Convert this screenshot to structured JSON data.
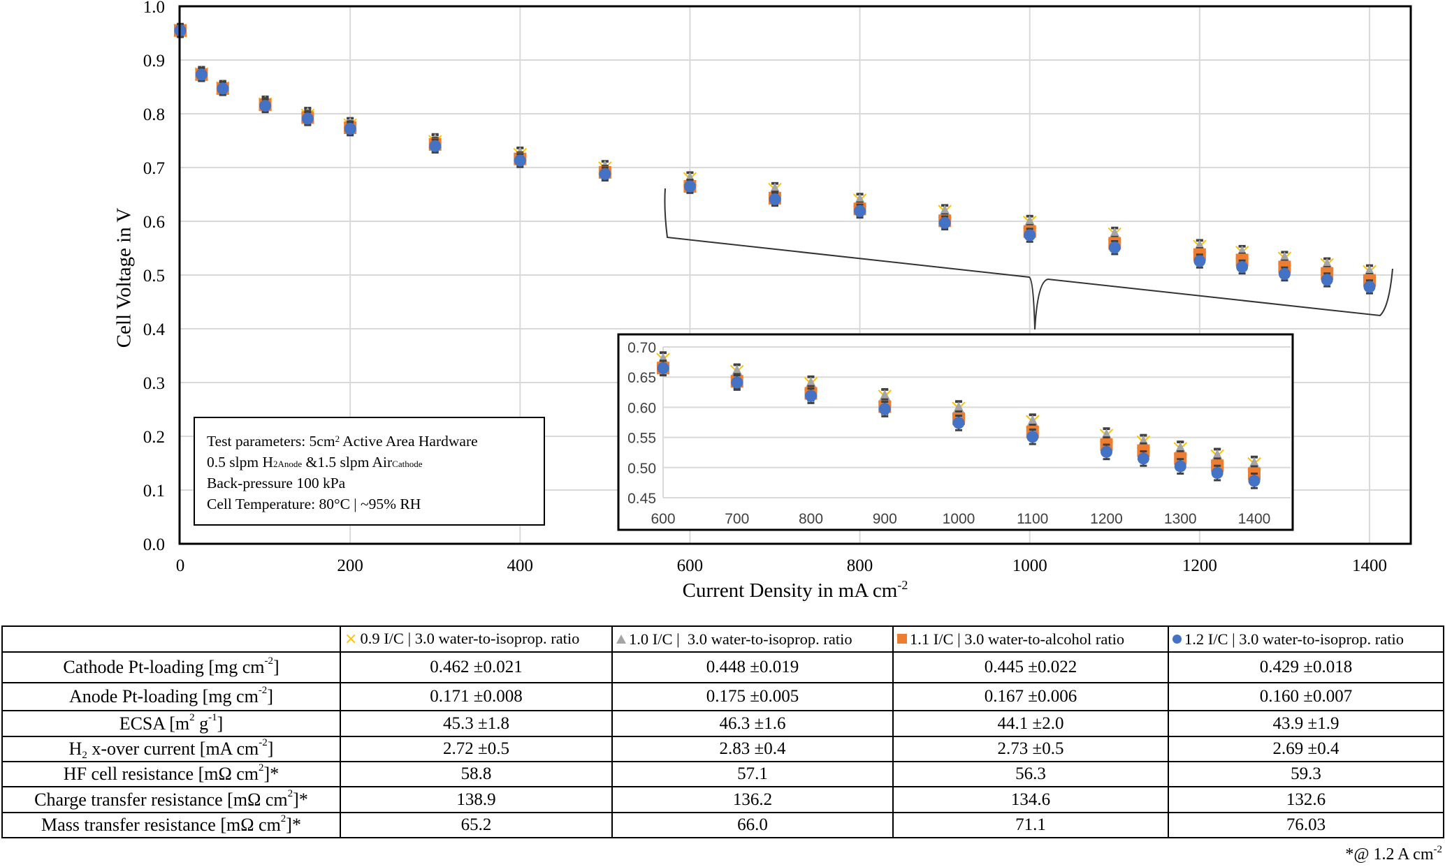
{
  "chart_data": [
    {
      "type": "scatter",
      "title": "",
      "xlabel": "Current Density in mA cm-2",
      "ylabel": "Cell Voltage in V",
      "xlim": [
        0,
        1400
      ],
      "ylim": [
        0.0,
        1.0
      ],
      "x_ticks": [
        0,
        200,
        400,
        600,
        800,
        1000,
        1200,
        1400
      ],
      "y_ticks": [
        "0.0",
        "0.1",
        "0.2",
        "0.3",
        "0.4",
        "0.5",
        "0.6",
        "0.7",
        "0.8",
        "0.9",
        "1.0"
      ],
      "grid": true,
      "x": [
        0,
        25,
        50,
        100,
        150,
        200,
        300,
        400,
        500,
        600,
        700,
        800,
        900,
        1000,
        1100,
        1200,
        1250,
        1300,
        1350,
        1400
      ],
      "series": [
        {
          "name": "0.9 I/C | 3.0 water-to-isoprop. ratio",
          "marker": "x",
          "color": "#FFC000",
          "values": [
            0.955,
            0.874,
            0.848,
            0.818,
            0.797,
            0.779,
            0.748,
            0.724,
            0.699,
            0.679,
            0.659,
            0.639,
            0.618,
            0.598,
            0.576,
            0.553,
            0.542,
            0.531,
            0.519,
            0.506
          ]
        },
        {
          "name": "1.0 I/C | 3.0 water-to-isoprop. ratio",
          "marker": "triangle",
          "color": "#A5A5A5",
          "values": [
            0.955,
            0.875,
            0.849,
            0.82,
            0.799,
            0.78,
            0.75,
            0.725,
            0.7,
            0.678,
            0.658,
            0.638,
            0.617,
            0.597,
            0.575,
            0.552,
            0.541,
            0.53,
            0.518,
            0.505
          ]
        },
        {
          "name": "1.1 I/C | 3.0 water-to-alcohol ratio",
          "marker": "square",
          "color": "#ED7D31",
          "values": [
            0.955,
            0.873,
            0.847,
            0.817,
            0.793,
            0.774,
            0.743,
            0.716,
            0.691,
            0.665,
            0.643,
            0.623,
            0.601,
            0.581,
            0.559,
            0.538,
            0.528,
            0.515,
            0.503,
            0.49
          ]
        },
        {
          "name": "1.2 I/C | 3.0 water-to-isoprop. ratio",
          "marker": "circle",
          "color": "#4472C4",
          "values": [
            0.955,
            0.873,
            0.847,
            0.815,
            0.791,
            0.772,
            0.74,
            0.713,
            0.688,
            0.665,
            0.641,
            0.619,
            0.597,
            0.574,
            0.551,
            0.526,
            0.515,
            0.502,
            0.491,
            0.478
          ]
        }
      ],
      "error_bar": 0.012,
      "annotation": "Test parameters box"
    },
    {
      "type": "scatter",
      "title": "Inset (zoom 600-1400 mA cm-2)",
      "xlim": [
        600,
        1400
      ],
      "ylim": [
        0.45,
        0.7
      ],
      "x_ticks": [
        600,
        700,
        800,
        900,
        1000,
        1100,
        1200,
        1300,
        1400
      ],
      "y_ticks": [
        "0.45",
        "0.50",
        "0.55",
        "0.60",
        "0.65",
        "0.70"
      ],
      "grid": true,
      "x": [
        600,
        700,
        800,
        900,
        1000,
        1100,
        1200,
        1250,
        1300,
        1350,
        1400
      ],
      "series": [
        {
          "name": "0.9 I/C | 3.0 water-to-isoprop. ratio",
          "marker": "x",
          "color": "#FFC000",
          "values": [
            0.679,
            0.659,
            0.639,
            0.618,
            0.598,
            0.576,
            0.553,
            0.542,
            0.531,
            0.519,
            0.506
          ]
        },
        {
          "name": "1.0 I/C | 3.0 water-to-isoprop. ratio",
          "marker": "triangle",
          "color": "#A5A5A5",
          "values": [
            0.678,
            0.658,
            0.638,
            0.617,
            0.597,
            0.575,
            0.552,
            0.541,
            0.53,
            0.518,
            0.505
          ]
        },
        {
          "name": "1.1 I/C | 3.0 water-to-alcohol ratio",
          "marker": "square",
          "color": "#ED7D31",
          "values": [
            0.665,
            0.643,
            0.623,
            0.601,
            0.581,
            0.559,
            0.538,
            0.528,
            0.515,
            0.503,
            0.49
          ]
        },
        {
          "name": "1.2 I/C | 3.0 water-to-isoprop. ratio",
          "marker": "circle",
          "color": "#4472C4",
          "values": [
            0.665,
            0.641,
            0.619,
            0.597,
            0.574,
            0.551,
            0.526,
            0.515,
            0.502,
            0.491,
            0.478
          ]
        }
      ]
    },
    {
      "type": "table",
      "columns": [
        "",
        "0.9 I/C | 3.0 water-to-isoprop. ratio",
        "1.0 I/C | 3.0 water-to-isoprop. ratio",
        "1.1 I/C | 3.0 water-to-alcohol ratio",
        "1.2 I/C | 3.0 water-to-isoprop. ratio"
      ],
      "rows": [
        [
          "Cathode Pt-loading [mg cm-2]",
          "0.462 ±0.021",
          "0.448 ±0.019",
          "0.445 ±0.022",
          "0.429 ±0.018"
        ],
        [
          "Anode Pt-loading [mg cm-2]",
          "0.171 ±0.008",
          "0.175 ±0.005",
          "0.167 ±0.006",
          "0.160 ±0.007"
        ],
        [
          "ECSA [m2 g-1]",
          "45.3 ±1.8",
          "46.3 ±1.6",
          "44.1 ±2.0",
          "43.9 ±1.9"
        ],
        [
          "H2 x-over current [mA cm-2]",
          "2.72 ±0.5",
          "2.83 ±0.4",
          "2.73 ±0.5",
          "2.69 ±0.4"
        ],
        [
          "HF cell resistance [mΩ cm2]*",
          "58.8",
          "57.1",
          "56.3",
          "59.3"
        ],
        [
          "Charge transfer resistance [mΩ cm2]*",
          "138.9",
          "136.2",
          "134.6",
          "132.6"
        ],
        [
          "Mass transfer resistance [mΩ cm2]*",
          "65.2",
          "66.0",
          "71.1",
          "76.03"
        ]
      ]
    }
  ],
  "colors": {
    "series_x": "#FFC000",
    "series_triangle": "#A5A5A5",
    "series_square": "#ED7D31",
    "series_circle": "#4472C4",
    "error_bar": "#404040",
    "grid": "#D9D9D9",
    "inset_text": "#404040"
  },
  "axes": {
    "y_title": "Cell Voltage in V",
    "x_title_main": "Current Density in mA cm",
    "x_title_sup": "-2"
  },
  "params_box": {
    "line1_a": "Test parameters: 5cm",
    "line1_sup": "2",
    "line1_b": " Active Area Hardware",
    "line2_a": "0.5 slpm H",
    "line2_sub1": "2Anode",
    "line2_b": " &1.5 slpm Air",
    "line2_sub2": "Cathode",
    "line3": "Back-pressure 100 kPa",
    "line4": "Cell Temperature: 80°C | ~95% RH"
  },
  "table": {
    "headers": [
      {
        "marker": "×",
        "label": "0.9 I/C | 3.0 water-to-isoprop. ratio"
      },
      {
        "marker": "▲",
        "label": "1.0 I/C |  3.0 water-to-isoprop. ratio"
      },
      {
        "marker": "■",
        "label": "1.1 I/C | 3.0 water-to-alcohol ratio"
      },
      {
        "marker": "●",
        "label": "1.2 I/C | 3.0 water-to-isoprop. ratio"
      }
    ],
    "rows": [
      {
        "label_a": "Cathode Pt-loading [mg cm",
        "label_sup": "-2",
        "label_b": "]",
        "values": [
          "0.462 ±0.021",
          "0.448 ±0.019",
          "0.445 ±0.022",
          "0.429 ±0.018"
        ]
      },
      {
        "label_a": "Anode Pt-loading [mg cm",
        "label_sup": "-2",
        "label_b": "]",
        "values": [
          "0.171 ±0.008",
          "0.175 ±0.005",
          "0.167 ±0.006",
          "0.160 ±0.007"
        ]
      },
      {
        "label_a": "ECSA [m",
        "label_sup": "2",
        "label_b": " g",
        "label_sup2": "-1",
        "label_c": "]",
        "values": [
          "45.3 ±1.8",
          "46.3 ±1.6",
          "44.1 ±2.0",
          "43.9 ±1.9"
        ]
      },
      {
        "label_a": "H",
        "label_sub": "2",
        "label_b": " x-over current [mA cm",
        "label_sup": "-2",
        "label_c": "]",
        "values": [
          "2.72 ±0.5",
          "2.83 ±0.4",
          "2.73 ±0.5",
          "2.69 ±0.4"
        ]
      },
      {
        "label_a": "HF cell resistance [mΩ cm",
        "label_sup": "2",
        "label_b": "]*",
        "values": [
          "58.8",
          "57.1",
          "56.3",
          "59.3"
        ]
      },
      {
        "label_a": "Charge transfer resistance [mΩ cm",
        "label_sup": "2",
        "label_b": "]*",
        "values": [
          "138.9",
          "136.2",
          "134.6",
          "132.6"
        ]
      },
      {
        "label_a": "Mass transfer resistance [mΩ cm",
        "label_sup": "2",
        "label_b": "]*",
        "values": [
          "65.2",
          "66.0",
          "71.1",
          "76.03"
        ]
      }
    ],
    "footnote_a": "*@ 1.2 A cm",
    "footnote_sup": "-2"
  }
}
